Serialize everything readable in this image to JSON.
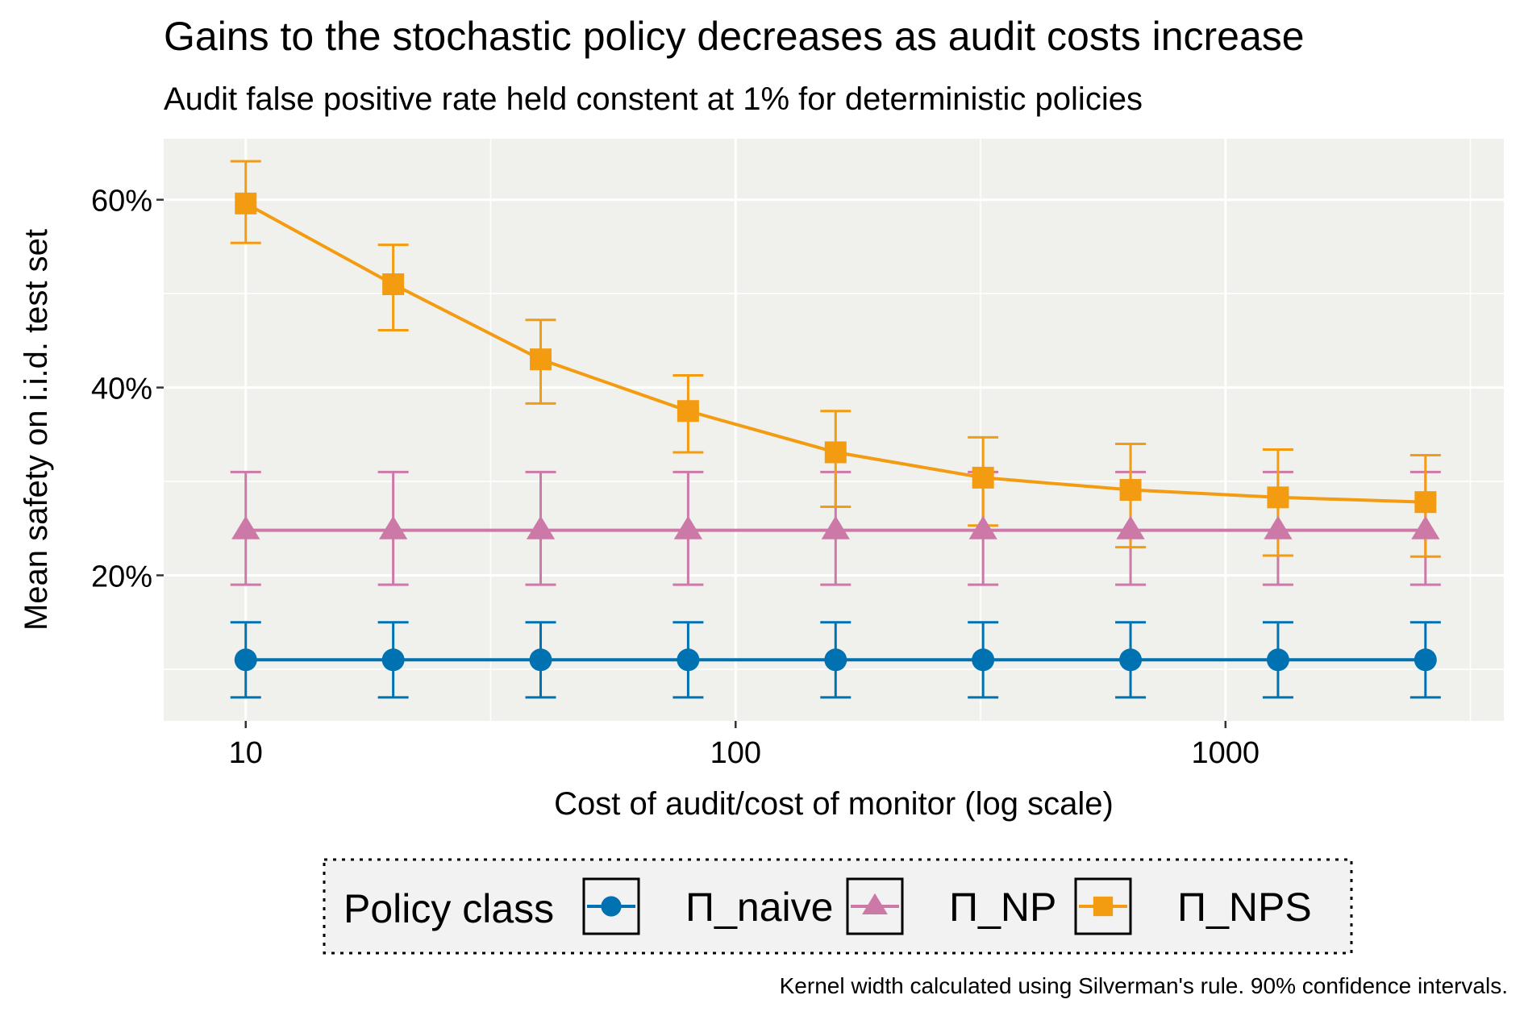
{
  "chart_data": {
    "type": "line",
    "title": "Gains to the stochastic policy decreases as audit costs increase",
    "subtitle": "Audit false positive rate held constent at 1% for deterministic policies",
    "xlabel": "Cost of audit/cost of monitor (log scale)",
    "ylabel": "Mean safety on i.i.d. test set",
    "caption": "Kernel width calculated using Silverman's rule. 90% confidence intervals.",
    "x_scale": "log10",
    "xlim": [
      6.8,
      3700
    ],
    "ylim": [
      4.5,
      66.5
    ],
    "x_ticks": [
      {
        "value": 10,
        "label": "10"
      },
      {
        "value": 100,
        "label": "100"
      },
      {
        "value": 1000,
        "label": "1000"
      }
    ],
    "x_minor": [
      31.62,
      316.2,
      3162
    ],
    "y_ticks": [
      {
        "value": 20,
        "label": "20%"
      },
      {
        "value": 40,
        "label": "40%"
      },
      {
        "value": 60,
        "label": "60%"
      }
    ],
    "y_minor": [
      10,
      30,
      50
    ],
    "grid": true,
    "x": [
      10,
      20,
      40,
      80,
      160,
      320,
      640,
      1280,
      2560
    ],
    "legend_title": "Policy class",
    "legend_position": "bottom",
    "series": [
      {
        "name": "Π_naive",
        "color": "#0072B2",
        "marker": "circle",
        "values": [
          11,
          11,
          11,
          11,
          11,
          11,
          11,
          11,
          11
        ],
        "lower": [
          7,
          7,
          7,
          7,
          7,
          7,
          7,
          7,
          7
        ],
        "upper": [
          15,
          15,
          15,
          15,
          15,
          15,
          15,
          15,
          15
        ]
      },
      {
        "name": "Π_NP",
        "color": "#CC79A7",
        "marker": "triangle",
        "values": [
          24.8,
          24.8,
          24.8,
          24.8,
          24.8,
          24.8,
          24.8,
          24.8,
          24.8
        ],
        "lower": [
          19,
          19,
          19,
          19,
          19,
          19,
          19,
          19,
          19
        ],
        "upper": [
          31,
          31,
          31,
          31,
          31,
          31,
          31,
          31,
          31
        ]
      },
      {
        "name": "Π_NPS",
        "color": "#F39C12",
        "marker": "square",
        "values": [
          59.6,
          51,
          43,
          37.5,
          33.1,
          30.4,
          29.1,
          28.3,
          27.8
        ],
        "lower": [
          55.4,
          46.1,
          38.3,
          33.1,
          27.3,
          25.3,
          23,
          22.1,
          22
        ],
        "upper": [
          64.1,
          55.2,
          47.2,
          41.3,
          37.5,
          34.7,
          34,
          33.4,
          32.8
        ]
      }
    ]
  }
}
